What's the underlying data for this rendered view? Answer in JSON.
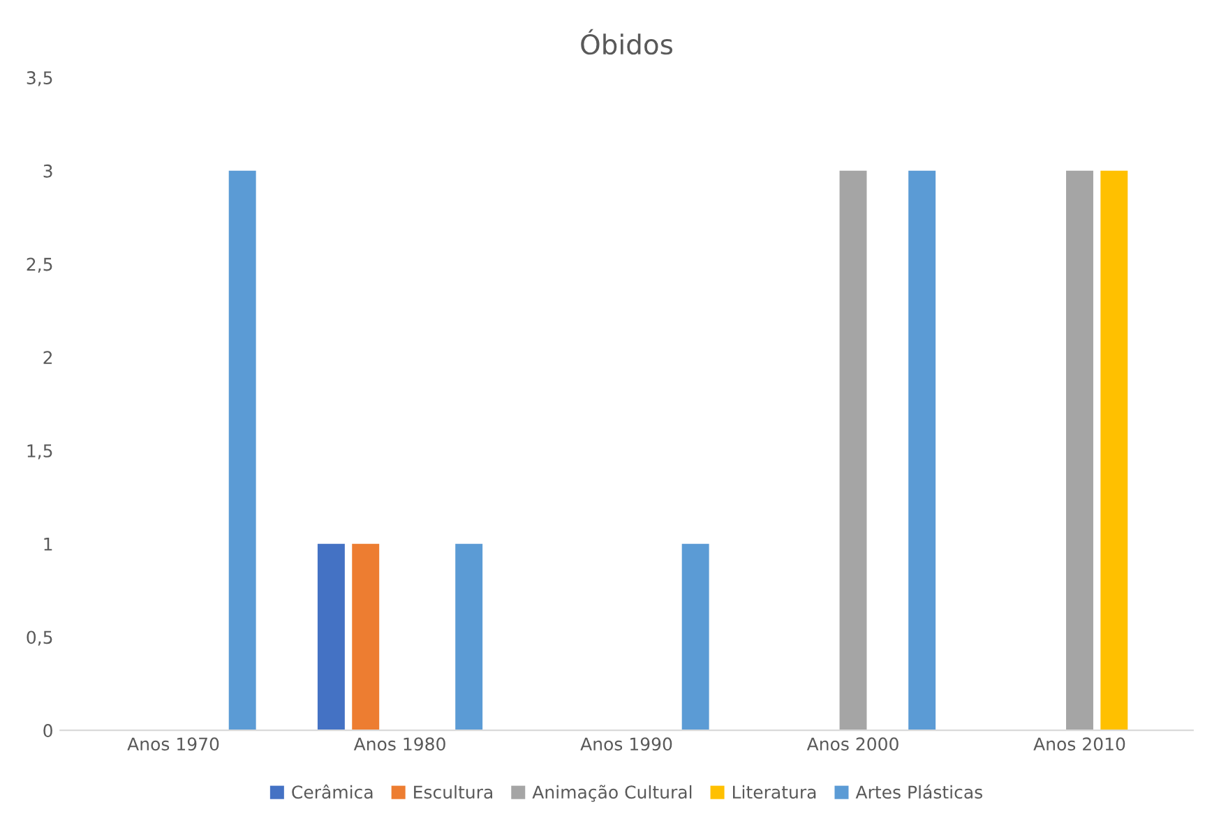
{
  "chart_data": {
    "type": "bar",
    "title": "Óbidos",
    "categories": [
      "Anos 1970",
      "Anos 1980",
      "Anos 1990",
      "Anos 2000",
      "Anos 2010"
    ],
    "series": [
      {
        "name": "Cerâmica",
        "color": "#4472c4",
        "values": [
          0,
          1,
          0,
          0,
          0
        ]
      },
      {
        "name": "Escultura",
        "color": "#ed7d31",
        "values": [
          0,
          1,
          0,
          0,
          0
        ]
      },
      {
        "name": "Animação Cultural",
        "color": "#a5a5a5",
        "values": [
          0,
          0,
          0,
          3,
          3
        ]
      },
      {
        "name": "Literatura",
        "color": "#ffc000",
        "values": [
          0,
          0,
          0,
          0,
          3
        ]
      },
      {
        "name": "Artes Plásticas",
        "color": "#5b9bd5",
        "values": [
          3,
          1,
          1,
          3,
          0
        ]
      }
    ],
    "ylim": [
      0,
      3.5
    ],
    "yticks": [
      0,
      {
        "value": 0.5,
        "label": "0,5"
      },
      1,
      {
        "value": 1.5,
        "label": "1,5"
      },
      2,
      {
        "value": 2.5,
        "label": "2,5"
      },
      3,
      {
        "value": 3.5,
        "label": "3,5"
      }
    ],
    "grid": false,
    "legend": "bottom"
  }
}
